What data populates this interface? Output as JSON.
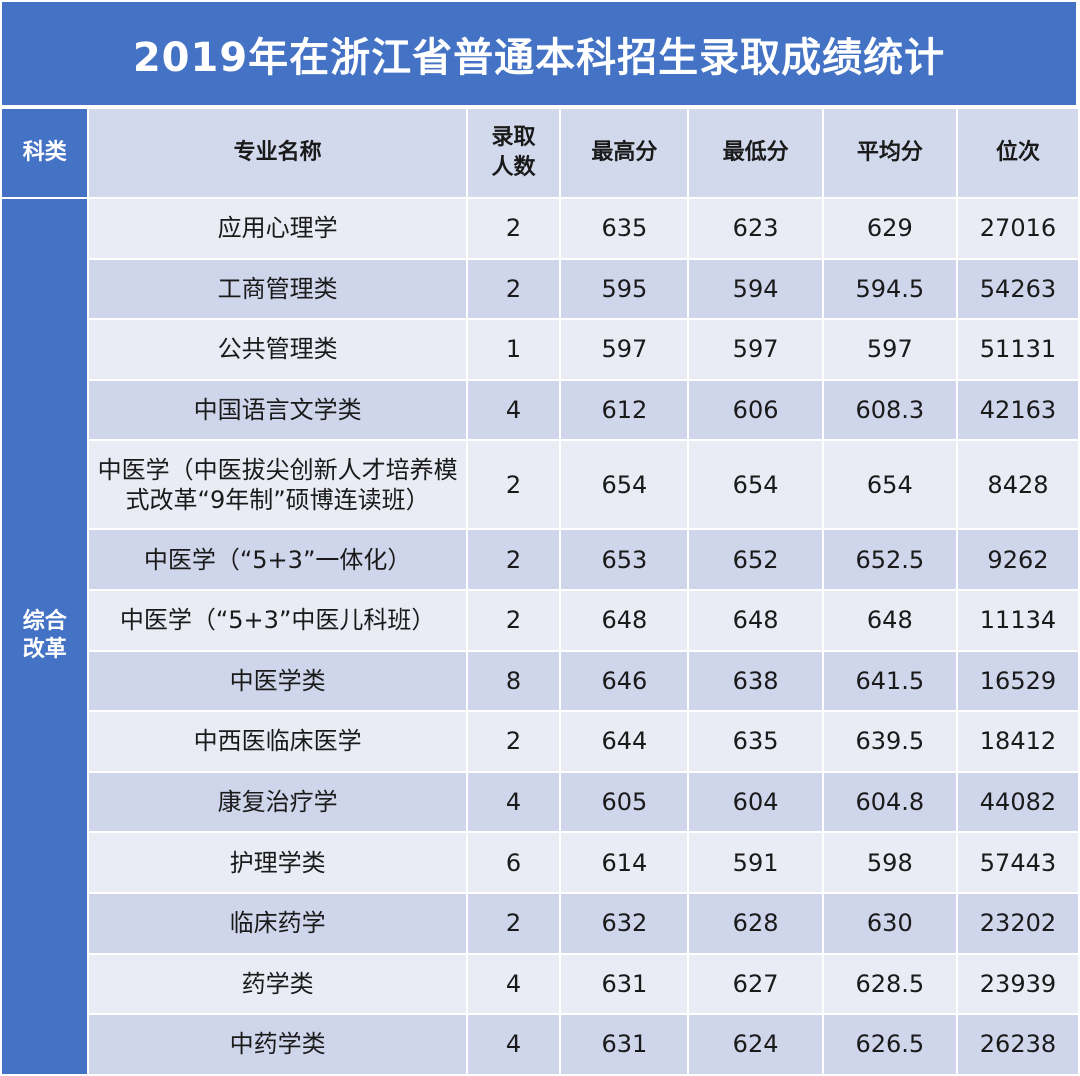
{
  "title": "2019年在浙江省普通本科招生录取成绩统计",
  "headers": {
    "category": "科类",
    "major": "专业名称",
    "admitted": "录取人数",
    "max": "最高分",
    "min": "最低分",
    "avg": "平均分",
    "rank": "位次"
  },
  "category": "综合改革",
  "rows": [
    {
      "major": "应用心理学",
      "admitted": "2",
      "max": "635",
      "min": "623",
      "avg": "629",
      "rank": "27016"
    },
    {
      "major": "工商管理类",
      "admitted": "2",
      "max": "595",
      "min": "594",
      "avg": "594.5",
      "rank": "54263"
    },
    {
      "major": "公共管理类",
      "admitted": "1",
      "max": "597",
      "min": "597",
      "avg": "597",
      "rank": "51131"
    },
    {
      "major": "中国语言文学类",
      "admitted": "4",
      "max": "612",
      "min": "606",
      "avg": "608.3",
      "rank": "42163"
    },
    {
      "major": "中医学（中医拔尖创新人才培养模式改革“9年制”硕博连读班）",
      "admitted": "2",
      "max": "654",
      "min": "654",
      "avg": "654",
      "rank": "8428"
    },
    {
      "major": "中医学（“5+3”一体化）",
      "admitted": "2",
      "max": "653",
      "min": "652",
      "avg": "652.5",
      "rank": "9262"
    },
    {
      "major": "中医学（“5+3”中医儿科班）",
      "admitted": "2",
      "max": "648",
      "min": "648",
      "avg": "648",
      "rank": "11134"
    },
    {
      "major": "中医学类",
      "admitted": "8",
      "max": "646",
      "min": "638",
      "avg": "641.5",
      "rank": "16529"
    },
    {
      "major": "中西医临床医学",
      "admitted": "2",
      "max": "644",
      "min": "635",
      "avg": "639.5",
      "rank": "18412"
    },
    {
      "major": "康复治疗学",
      "admitted": "4",
      "max": "605",
      "min": "604",
      "avg": "604.8",
      "rank": "44082"
    },
    {
      "major": "护理学类",
      "admitted": "6",
      "max": "614",
      "min": "591",
      "avg": "598",
      "rank": "57443"
    },
    {
      "major": "临床药学",
      "admitted": "2",
      "max": "632",
      "min": "628",
      "avg": "630",
      "rank": "23202"
    },
    {
      "major": "药学类",
      "admitted": "4",
      "max": "631",
      "min": "627",
      "avg": "628.5",
      "rank": "23939"
    },
    {
      "major": "中药学类",
      "admitted": "4",
      "max": "631",
      "min": "624",
      "avg": "626.5",
      "rank": "26238"
    }
  ],
  "colors": {
    "header_blue": "#4472c4",
    "header_light": "#d3d9ec",
    "row_light": "#e9ebf5",
    "row_dark": "#cfd5ea"
  }
}
